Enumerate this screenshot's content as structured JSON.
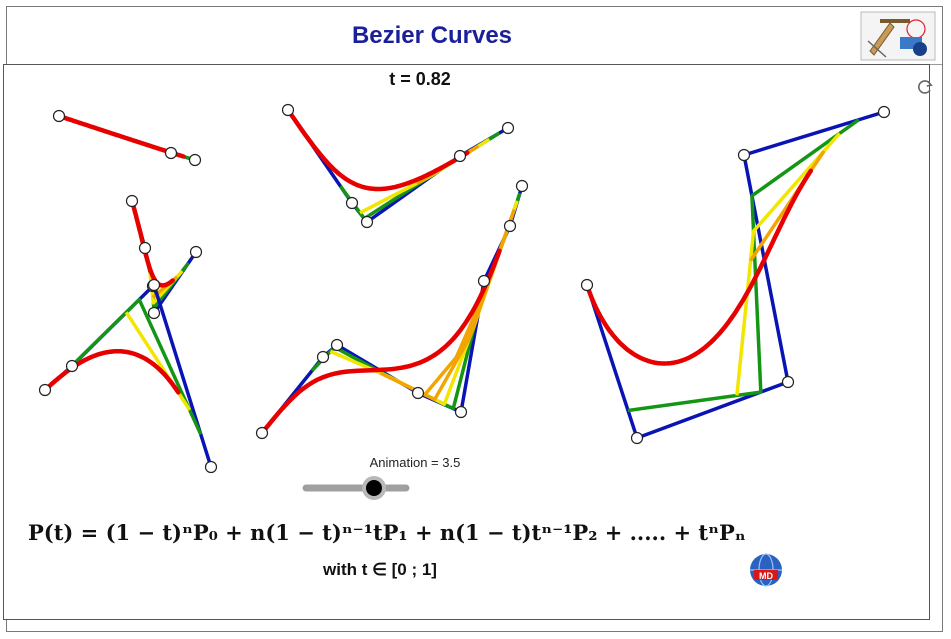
{
  "header": {
    "title": "Bezier Curves",
    "logo_icon": "geometry-tools-logo-icon"
  },
  "status": {
    "t_label": "t = 0.82"
  },
  "animation": {
    "label": "Animation = 3.5",
    "value": 3.5
  },
  "formula": {
    "main": "P(t) = (1 − t)ⁿP₀ + n(1 − t)ⁿ⁻¹tP₁ + n(1 − t)tⁿ⁻¹P₂ + ..... + tⁿPₙ",
    "domain": "with t ∈ [0 ; 1]"
  },
  "icons": {
    "refresh": "refresh-icon",
    "badge": "globe-badge-icon"
  },
  "colors": {
    "polygon": "#0a14b4",
    "level1": "#149614",
    "level2": "#f2e600",
    "level3": "#f2a500",
    "curve": "#e60000",
    "title": "#1a1f9a"
  }
}
